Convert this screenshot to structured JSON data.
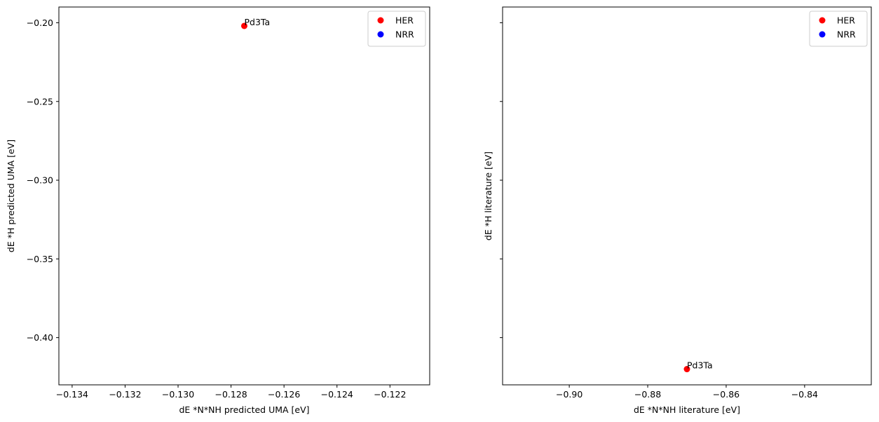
{
  "chart_data": [
    {
      "type": "scatter",
      "xlabel": "dE *N*NH predicted UMA [eV]",
      "ylabel": "dE *H predicted UMA [eV]",
      "xlim": [
        -0.1345,
        -0.1205
      ],
      "ylim": [
        -0.43,
        -0.19
      ],
      "xticks": [
        {
          "value": -0.134,
          "label": "−0.134"
        },
        {
          "value": -0.132,
          "label": "−0.132"
        },
        {
          "value": -0.13,
          "label": "−0.130"
        },
        {
          "value": -0.128,
          "label": "−0.128"
        },
        {
          "value": -0.126,
          "label": "−0.126"
        },
        {
          "value": -0.124,
          "label": "−0.124"
        },
        {
          "value": -0.122,
          "label": "−0.122"
        }
      ],
      "yticks": [
        {
          "value": -0.2,
          "label": "−0.20"
        },
        {
          "value": -0.25,
          "label": "−0.25"
        },
        {
          "value": -0.3,
          "label": "−0.30"
        },
        {
          "value": -0.35,
          "label": "−0.35"
        },
        {
          "value": -0.4,
          "label": "−0.40"
        }
      ],
      "show_ytick_labels": true,
      "grid": false,
      "legend_position": "upper right",
      "series": [
        {
          "name": "HER",
          "color": "#ff0000",
          "points": [
            {
              "x": -0.1275,
              "y": -0.202,
              "label": "Pd3Ta"
            }
          ]
        },
        {
          "name": "NRR",
          "color": "#0000ff",
          "points": []
        }
      ]
    },
    {
      "type": "scatter",
      "xlabel": "dE *N*NH literature [eV]",
      "ylabel": "dE *H literature [eV]",
      "xlim": [
        -0.917,
        -0.823
      ],
      "ylim": [
        -0.43,
        -0.19
      ],
      "xticks": [
        {
          "value": -0.9,
          "label": "−0.90"
        },
        {
          "value": -0.88,
          "label": "−0.88"
        },
        {
          "value": -0.86,
          "label": "−0.86"
        },
        {
          "value": -0.84,
          "label": "−0.84"
        }
      ],
      "yticks": [
        {
          "value": -0.2,
          "label": ""
        },
        {
          "value": -0.25,
          "label": ""
        },
        {
          "value": -0.3,
          "label": ""
        },
        {
          "value": -0.35,
          "label": ""
        },
        {
          "value": -0.4,
          "label": ""
        }
      ],
      "show_ytick_labels": false,
      "grid": false,
      "legend_position": "upper right",
      "series": [
        {
          "name": "HER",
          "color": "#ff0000",
          "points": [
            {
              "x": -0.87,
              "y": -0.42,
              "label": "Pd3Ta"
            }
          ]
        },
        {
          "name": "NRR",
          "color": "#0000ff",
          "points": []
        }
      ]
    }
  ]
}
